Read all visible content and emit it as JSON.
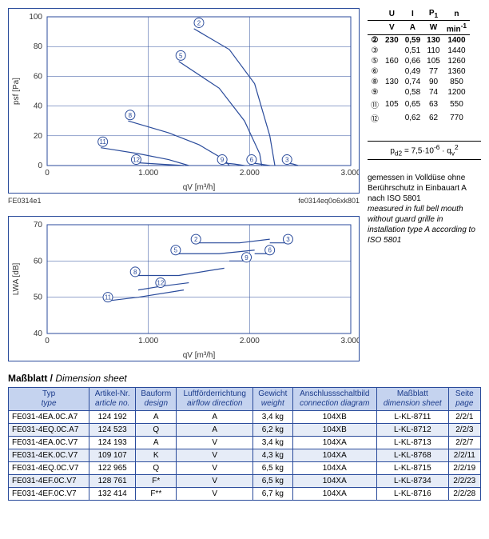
{
  "chart1": {
    "type": "line",
    "title_left": "FE0314e1",
    "title_right": "fe0314eq0o6xk801",
    "xlabel": "qV [m³/h]",
    "ylabel": "psf [Pa]",
    "xlim": [
      0,
      3000
    ],
    "ylim": [
      0,
      100
    ],
    "xticks": [
      0,
      1000,
      2000,
      3000
    ],
    "yticks": [
      0,
      20,
      40,
      60,
      80,
      100
    ],
    "line_color": "#2a4b9b",
    "grid_color": "#2a4b9b",
    "background_color": "#ffffff",
    "curves": [
      {
        "id": "2",
        "label_xy": [
          1500,
          96
        ],
        "pts": [
          [
            1450,
            92
          ],
          [
            1800,
            78
          ],
          [
            2050,
            55
          ],
          [
            2200,
            20
          ],
          [
            2250,
            0
          ]
        ]
      },
      {
        "id": "5",
        "label_xy": [
          1320,
          74
        ],
        "pts": [
          [
            1300,
            70
          ],
          [
            1700,
            52
          ],
          [
            1950,
            30
          ],
          [
            2100,
            8
          ],
          [
            2120,
            0
          ]
        ]
      },
      {
        "id": "8",
        "label_xy": [
          820,
          34
        ],
        "pts": [
          [
            800,
            30
          ],
          [
            1200,
            22
          ],
          [
            1500,
            14
          ],
          [
            1750,
            4
          ],
          [
            1800,
            0
          ]
        ]
      },
      {
        "id": "11",
        "label_xy": [
          550,
          16
        ],
        "pts": [
          [
            530,
            12
          ],
          [
            900,
            8
          ],
          [
            1200,
            4
          ],
          [
            1400,
            0
          ]
        ]
      },
      {
        "id": "12",
        "label_xy": [
          880,
          4
        ],
        "pts": [
          [
            860,
            2
          ],
          [
            1100,
            1
          ],
          [
            1350,
            0
          ]
        ]
      },
      {
        "id": "9",
        "label_xy": [
          1730,
          4
        ],
        "pts": [
          [
            1700,
            2
          ],
          [
            1850,
            1
          ],
          [
            1950,
            0
          ]
        ]
      },
      {
        "id": "6",
        "label_xy": [
          2020,
          4
        ],
        "pts": [
          [
            2000,
            2
          ],
          [
            2100,
            1
          ],
          [
            2200,
            0
          ]
        ]
      },
      {
        "id": "3",
        "label_xy": [
          2370,
          4
        ],
        "pts": [
          [
            2350,
            2
          ],
          [
            2430,
            1
          ],
          [
            2480,
            0
          ]
        ]
      }
    ]
  },
  "chart2": {
    "type": "line",
    "xlabel": "qV [m³/h]",
    "ylabel": "LWA [dB]",
    "xlim": [
      0,
      3000
    ],
    "ylim": [
      40,
      70
    ],
    "xticks": [
      0,
      1000,
      2000,
      3000
    ],
    "yticks": [
      40,
      50,
      60,
      70
    ],
    "line_color": "#2a4b9b",
    "grid_color": "#2a4b9b",
    "background_color": "#ffffff",
    "curves": [
      {
        "id": "2",
        "label_xy": [
          1470,
          66
        ],
        "pts": [
          [
            1450,
            65
          ],
          [
            1900,
            65
          ],
          [
            2200,
            66
          ]
        ]
      },
      {
        "id": "3",
        "label_xy": [
          2380,
          66
        ],
        "pts": [
          [
            2200,
            65
          ],
          [
            2380,
            65
          ]
        ]
      },
      {
        "id": "5",
        "label_xy": [
          1270,
          63
        ],
        "pts": [
          [
            1290,
            62
          ],
          [
            1700,
            62
          ],
          [
            2050,
            63
          ]
        ]
      },
      {
        "id": "6",
        "label_xy": [
          2200,
          63
        ],
        "pts": [
          [
            2050,
            62
          ],
          [
            2200,
            62
          ]
        ]
      },
      {
        "id": "9",
        "label_xy": [
          1970,
          61
        ],
        "pts": [
          [
            1800,
            60
          ],
          [
            1970,
            60
          ]
        ]
      },
      {
        "id": "8",
        "label_xy": [
          870,
          57
        ],
        "pts": [
          [
            870,
            56
          ],
          [
            1300,
            56
          ],
          [
            1750,
            58
          ]
        ]
      },
      {
        "id": "12",
        "label_xy": [
          1120,
          54
        ],
        "pts": [
          [
            900,
            52
          ],
          [
            1120,
            53
          ],
          [
            1400,
            54
          ]
        ]
      },
      {
        "id": "11",
        "label_xy": [
          600,
          50
        ],
        "pts": [
          [
            600,
            49
          ],
          [
            900,
            50
          ],
          [
            1350,
            52
          ]
        ]
      }
    ]
  },
  "motor_table": {
    "headers1": [
      "",
      "U",
      "I",
      "P1",
      "n"
    ],
    "headers2": [
      "",
      "V",
      "A",
      "W",
      "min-1"
    ],
    "rows": [
      {
        "sym": "②",
        "u": "230",
        "i": "0,59",
        "p": "130",
        "n": "1400",
        "bold": true
      },
      {
        "sym": "③",
        "u": "",
        "i": "0,51",
        "p": "110",
        "n": "1440"
      },
      {
        "sym": "⑤",
        "u": "160",
        "i": "0,66",
        "p": "105",
        "n": "1260"
      },
      {
        "sym": "⑥",
        "u": "",
        "i": "0,49",
        "p": "77",
        "n": "1360"
      },
      {
        "sym": "⑧",
        "u": "130",
        "i": "0,74",
        "p": "90",
        "n": "850"
      },
      {
        "sym": "⑨",
        "u": "",
        "i": "0,58",
        "p": "74",
        "n": "1200"
      },
      {
        "sym": "⑪",
        "u": "105",
        "i": "0,65",
        "p": "63",
        "n": "550"
      },
      {
        "sym": "⑫",
        "u": "",
        "i": "0,62",
        "p": "62",
        "n": "770"
      }
    ]
  },
  "formula": "pd2 = 7,5·10-6 · qv2",
  "note": {
    "de": "gemessen in Volldüse ohne Berührschutz in Einbauart A nach ISO 5801",
    "en": "measured in full bell mouth without guard grille in installation type A according to ISO 5801"
  },
  "dimsheet": {
    "heading_de": "Maßblatt",
    "heading_en": "Dimension sheet",
    "columns": [
      {
        "de": "Typ",
        "en": "type"
      },
      {
        "de": "Artikel-Nr.",
        "en": "article no."
      },
      {
        "de": "Bauform",
        "en": "design"
      },
      {
        "de": "Luftförderrichtung",
        "en": "airflow direction"
      },
      {
        "de": "Gewicht",
        "en": "weight"
      },
      {
        "de": "Anschlussschaltbild",
        "en": "connection diagram"
      },
      {
        "de": "Maßblatt",
        "en": "dimension sheet"
      },
      {
        "de": "Seite",
        "en": "page"
      }
    ],
    "rows": [
      [
        "FE031-4EA.0C.A7",
        "124 192",
        "A",
        "A",
        "3,4 kg",
        "104XB",
        "L-KL-8711",
        "2/2/1"
      ],
      [
        "FE031-4EQ.0C.A7",
        "124 523",
        "Q",
        "A",
        "6,2 kg",
        "104XB",
        "L-KL-8712",
        "2/2/3"
      ],
      [
        "FE031-4EA.0C.V7",
        "124 193",
        "A",
        "V",
        "3,4 kg",
        "104XA",
        "L-KL-8713",
        "2/2/7"
      ],
      [
        "FE031-4EK.0C.V7",
        "109 107",
        "K",
        "V",
        "4,3 kg",
        "104XA",
        "L-KL-8768",
        "2/2/11"
      ],
      [
        "FE031-4EQ.0C.V7",
        "122 965",
        "Q",
        "V",
        "6,5 kg",
        "104XA",
        "L-KL-8715",
        "2/2/19"
      ],
      [
        "FE031-4EF.0C.V7",
        "128 761",
        "F*",
        "V",
        "6,5 kg",
        "104XA",
        "L-KL-8734",
        "2/2/23"
      ],
      [
        "FE031-4EF.0C.V7",
        "132 414",
        "F**",
        "V",
        "6,7 kg",
        "104XA",
        "L-KL-8716",
        "2/2/28"
      ]
    ]
  }
}
